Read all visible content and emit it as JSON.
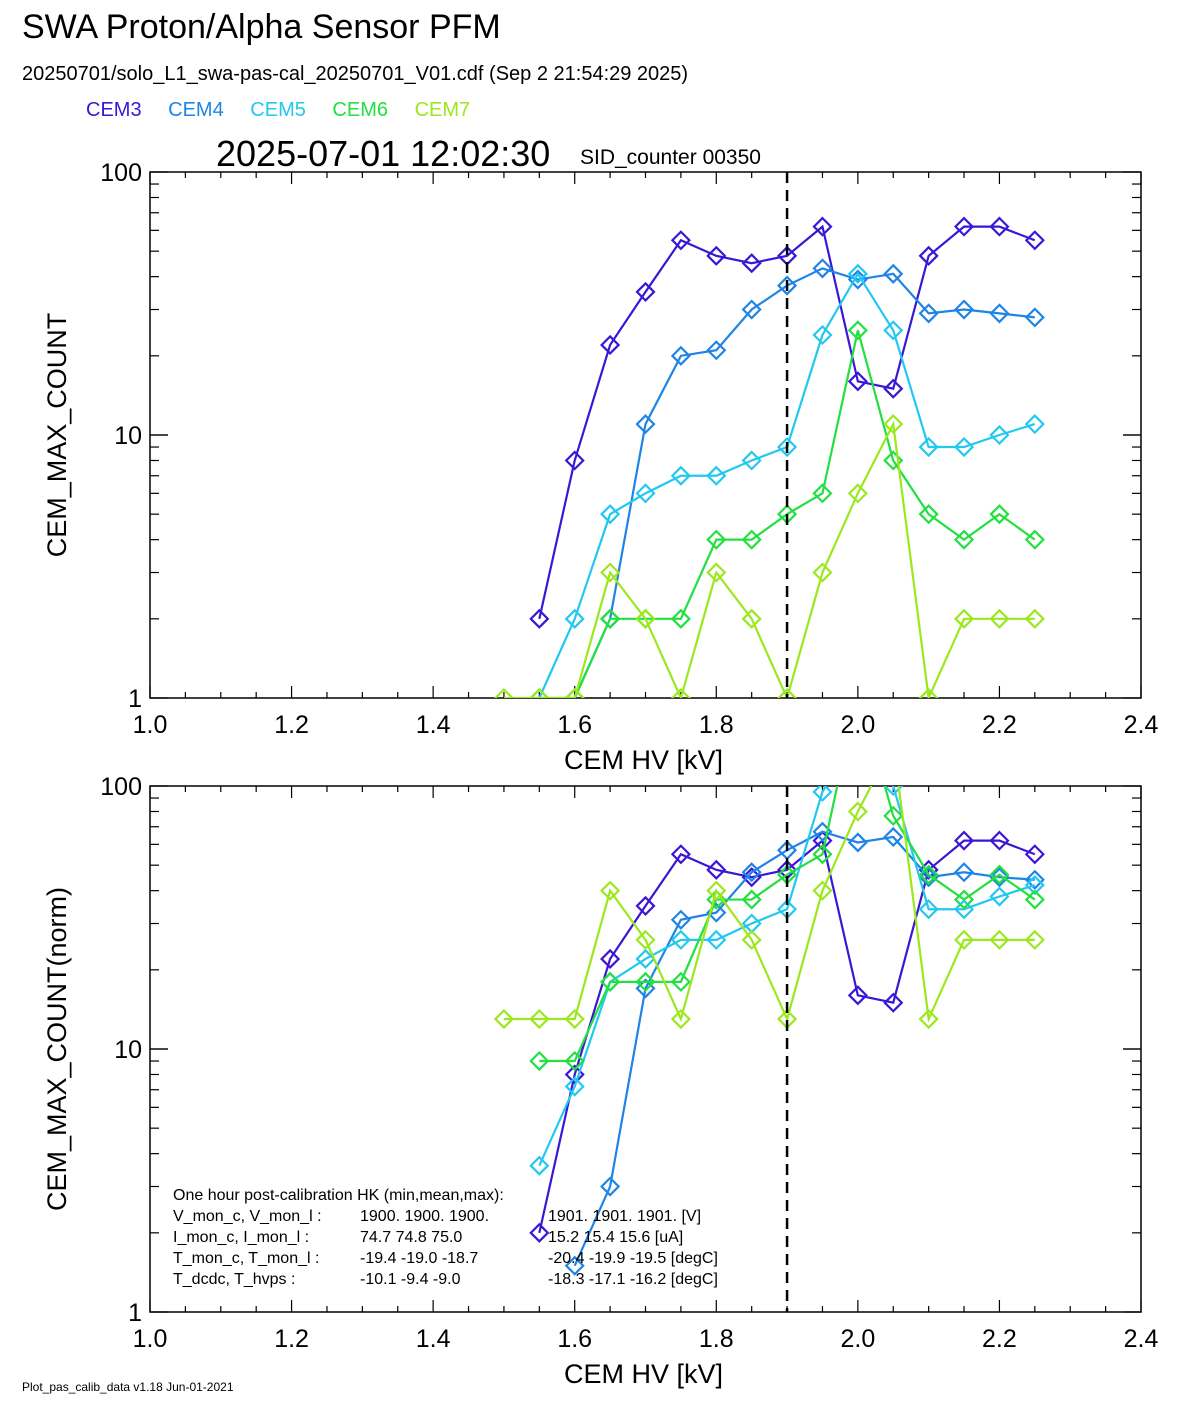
{
  "header": {
    "title": "SWA Proton/Alpha Sensor PFM",
    "subtitle": "20250701/solo_L1_swa-pas-cal_20250701_V01.cdf  (Sep  2 21:54:29 2025)",
    "timestamp": "2025-07-01 12:02:30",
    "sid_counter": "SID_counter 00350"
  },
  "legend": [
    {
      "name": "CEM3",
      "color": "#3a16d6"
    },
    {
      "name": "CEM4",
      "color": "#1f84e6"
    },
    {
      "name": "CEM5",
      "color": "#22c8f0"
    },
    {
      "name": "CEM6",
      "color": "#22e040"
    },
    {
      "name": "CEM7",
      "color": "#9be81e"
    }
  ],
  "footer": "Plot_pas_calib_data v1.18 Jun-01-2021",
  "hk_box": {
    "heading": "One hour post-calibration HK (min,mean,max):",
    "rows": [
      {
        "label": "V_mon_c, V_mon_l :",
        "a": "1900.  1900.  1900.",
        "b": "1901.  1901.  1901. [V]"
      },
      {
        "label": "I_mon_c,  I_mon_l :",
        "a": "74.7   74.8   75.0",
        "b": "15.2   15.4   15.6  [uA]"
      },
      {
        "label": "T_mon_c, T_mon_l :",
        "a": "-19.4  -19.0  -18.7",
        "b": "-20.4  -19.9  -19.5  [degC]"
      },
      {
        "label": "T_dcdc,    T_hvps :",
        "a": "-10.1   -9.4   -9.0",
        "b": "-18.3  -17.1  -16.2  [degC]"
      }
    ]
  },
  "chart_data": [
    {
      "type": "line",
      "xlabel": "CEM HV [kV]",
      "ylabel": "CEM_MAX_COUNT",
      "xlim": [
        1.0,
        2.4
      ],
      "ylim": [
        1,
        100
      ],
      "yscale": "log",
      "xticks": [
        "1.0",
        "1.2",
        "1.4",
        "1.6",
        "1.8",
        "2.0",
        "2.2",
        "2.4"
      ],
      "yticks": [
        "1",
        "10",
        "100"
      ],
      "vline_x": 1.9,
      "marker": "diamond",
      "x": [
        1.5,
        1.55,
        1.6,
        1.65,
        1.7,
        1.75,
        1.8,
        1.85,
        1.9,
        1.95,
        2.0,
        2.05,
        2.1,
        2.15,
        2.2,
        2.25
      ],
      "series": [
        {
          "name": "CEM3",
          "color": "#3a16d6",
          "values": [
            null,
            2,
            8,
            22,
            35,
            55,
            48,
            45,
            48,
            62,
            16,
            15,
            48,
            62,
            62,
            55
          ]
        },
        {
          "name": "CEM4",
          "color": "#1f84e6",
          "values": [
            null,
            null,
            1,
            2,
            11,
            20,
            21,
            30,
            37,
            43,
            39,
            41,
            29,
            30,
            29,
            28
          ]
        },
        {
          "name": "CEM5",
          "color": "#22c8f0",
          "values": [
            null,
            1,
            2,
            5,
            6,
            7,
            7,
            8,
            9,
            24,
            41,
            25,
            9,
            9,
            10,
            11
          ]
        },
        {
          "name": "CEM6",
          "color": "#22e040",
          "values": [
            null,
            1,
            1,
            2,
            2,
            2,
            4,
            4,
            5,
            6,
            25,
            8,
            5,
            4,
            5,
            4
          ]
        },
        {
          "name": "CEM7",
          "color": "#9be81e",
          "values": [
            1,
            1,
            1,
            3,
            2,
            1,
            3,
            2,
            1,
            3,
            6,
            11,
            1,
            2,
            2,
            2
          ]
        }
      ]
    },
    {
      "type": "line",
      "xlabel": "CEM HV [kV]",
      "ylabel": "CEM_MAX_COUNT(norm)",
      "xlim": [
        1.0,
        2.4
      ],
      "ylim": [
        1,
        100
      ],
      "yscale": "log",
      "xticks": [
        "1.0",
        "1.2",
        "1.4",
        "1.6",
        "1.8",
        "2.0",
        "2.2",
        "2.4"
      ],
      "yticks": [
        "1",
        "10",
        "100"
      ],
      "vline_x": 1.9,
      "marker": "diamond",
      "x": [
        1.5,
        1.55,
        1.6,
        1.65,
        1.7,
        1.75,
        1.8,
        1.85,
        1.9,
        1.95,
        2.0,
        2.05,
        2.1,
        2.15,
        2.2,
        2.25
      ],
      "series": [
        {
          "name": "CEM3",
          "color": "#3a16d6",
          "values": [
            null,
            2,
            8,
            22,
            35,
            55,
            48,
            45,
            48,
            62,
            16,
            15,
            48,
            62,
            62,
            55
          ]
        },
        {
          "name": "CEM4",
          "color": "#1f84e6",
          "values": [
            null,
            null,
            1.5,
            3,
            17,
            31,
            33,
            47,
            57,
            67,
            61,
            64,
            45,
            47,
            45,
            44
          ]
        },
        {
          "name": "CEM5",
          "color": "#22c8f0",
          "values": [
            null,
            3.6,
            7.2,
            18,
            22,
            26,
            26,
            30,
            34,
            95,
            160,
            100,
            34,
            34,
            38,
            42
          ]
        },
        {
          "name": "CEM6",
          "color": "#22e040",
          "values": [
            null,
            9,
            9,
            18,
            18,
            18,
            37,
            37,
            46,
            55,
            230,
            77,
            46,
            37,
            46,
            37
          ]
        },
        {
          "name": "CEM7",
          "color": "#9be81e",
          "values": [
            13,
            13,
            13,
            40,
            26,
            13,
            40,
            26,
            13,
            40,
            80,
            145,
            13,
            26,
            26,
            26
          ]
        }
      ]
    }
  ]
}
